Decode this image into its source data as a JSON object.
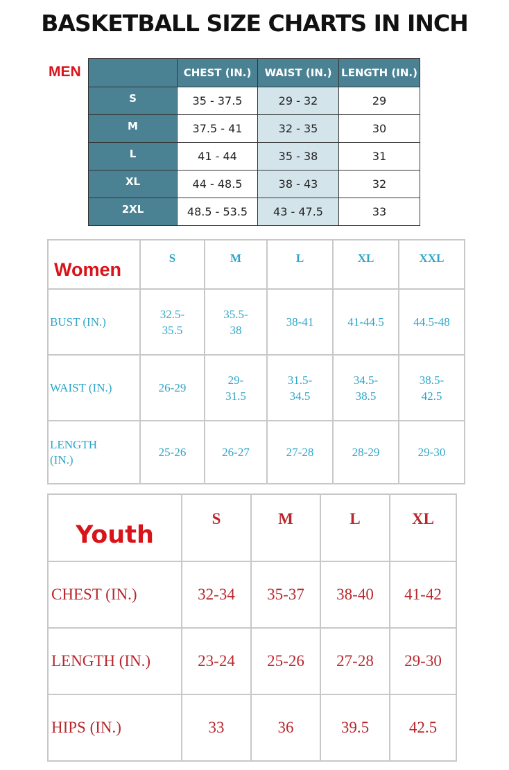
{
  "title": "BASKETBALL SIZE CHARTS IN INCH",
  "men": {
    "label": "MEN",
    "headers": [
      "CHEST (IN.)",
      "WAIST (IN.)",
      "LENGTH (IN.)"
    ],
    "rows": [
      {
        "size": "S",
        "chest": "35 - 37.5",
        "waist": "29 - 32",
        "length": "29"
      },
      {
        "size": "M",
        "chest": "37.5 - 41",
        "waist": "32 - 35",
        "length": "30"
      },
      {
        "size": "L",
        "chest": "41 - 44",
        "waist": "35 - 38",
        "length": "31"
      },
      {
        "size": "XL",
        "chest": "44 - 48.5",
        "waist": "38 - 43",
        "length": "32"
      },
      {
        "size": "2XL",
        "chest": "48.5 - 53.5",
        "waist": "43 - 47.5",
        "length": "33"
      }
    ],
    "colors": {
      "header_bg": "#4a8294",
      "waist_bg": "#d3e4ea"
    }
  },
  "women": {
    "label": "Women",
    "sizes": [
      "S",
      "M",
      "L",
      "XL",
      "XXL"
    ],
    "rows": [
      {
        "name": "BUST (IN.)",
        "values": [
          "32.5-\n35.5",
          "35.5-\n38",
          "38-41",
          "41-44.5",
          "44.5-48"
        ]
      },
      {
        "name": "WAIST (IN.)",
        "values": [
          "26-29",
          "29-\n31.5",
          "31.5-\n34.5",
          "34.5-\n38.5",
          "38.5-\n42.5"
        ]
      },
      {
        "name": "LENGTH\n(IN.)",
        "values": [
          "25-26",
          "26-27",
          "27-28",
          "28-29",
          "29-30"
        ]
      }
    ],
    "colors": {
      "text": "#2ea5c8"
    }
  },
  "youth": {
    "label": "Youth",
    "sizes": [
      "S",
      "M",
      "L",
      "XL"
    ],
    "rows": [
      {
        "name": "CHEST (IN.)",
        "values": [
          "32-34",
          "35-37",
          "38-40",
          "41-42"
        ]
      },
      {
        "name": "LENGTH (IN.)",
        "values": [
          "23-24",
          "25-26",
          "27-28",
          "29-30"
        ]
      },
      {
        "name": "HIPS (IN.)",
        "values": [
          "33",
          "36",
          "39.5",
          "42.5"
        ]
      }
    ],
    "colors": {
      "text": "#b7282e"
    }
  }
}
